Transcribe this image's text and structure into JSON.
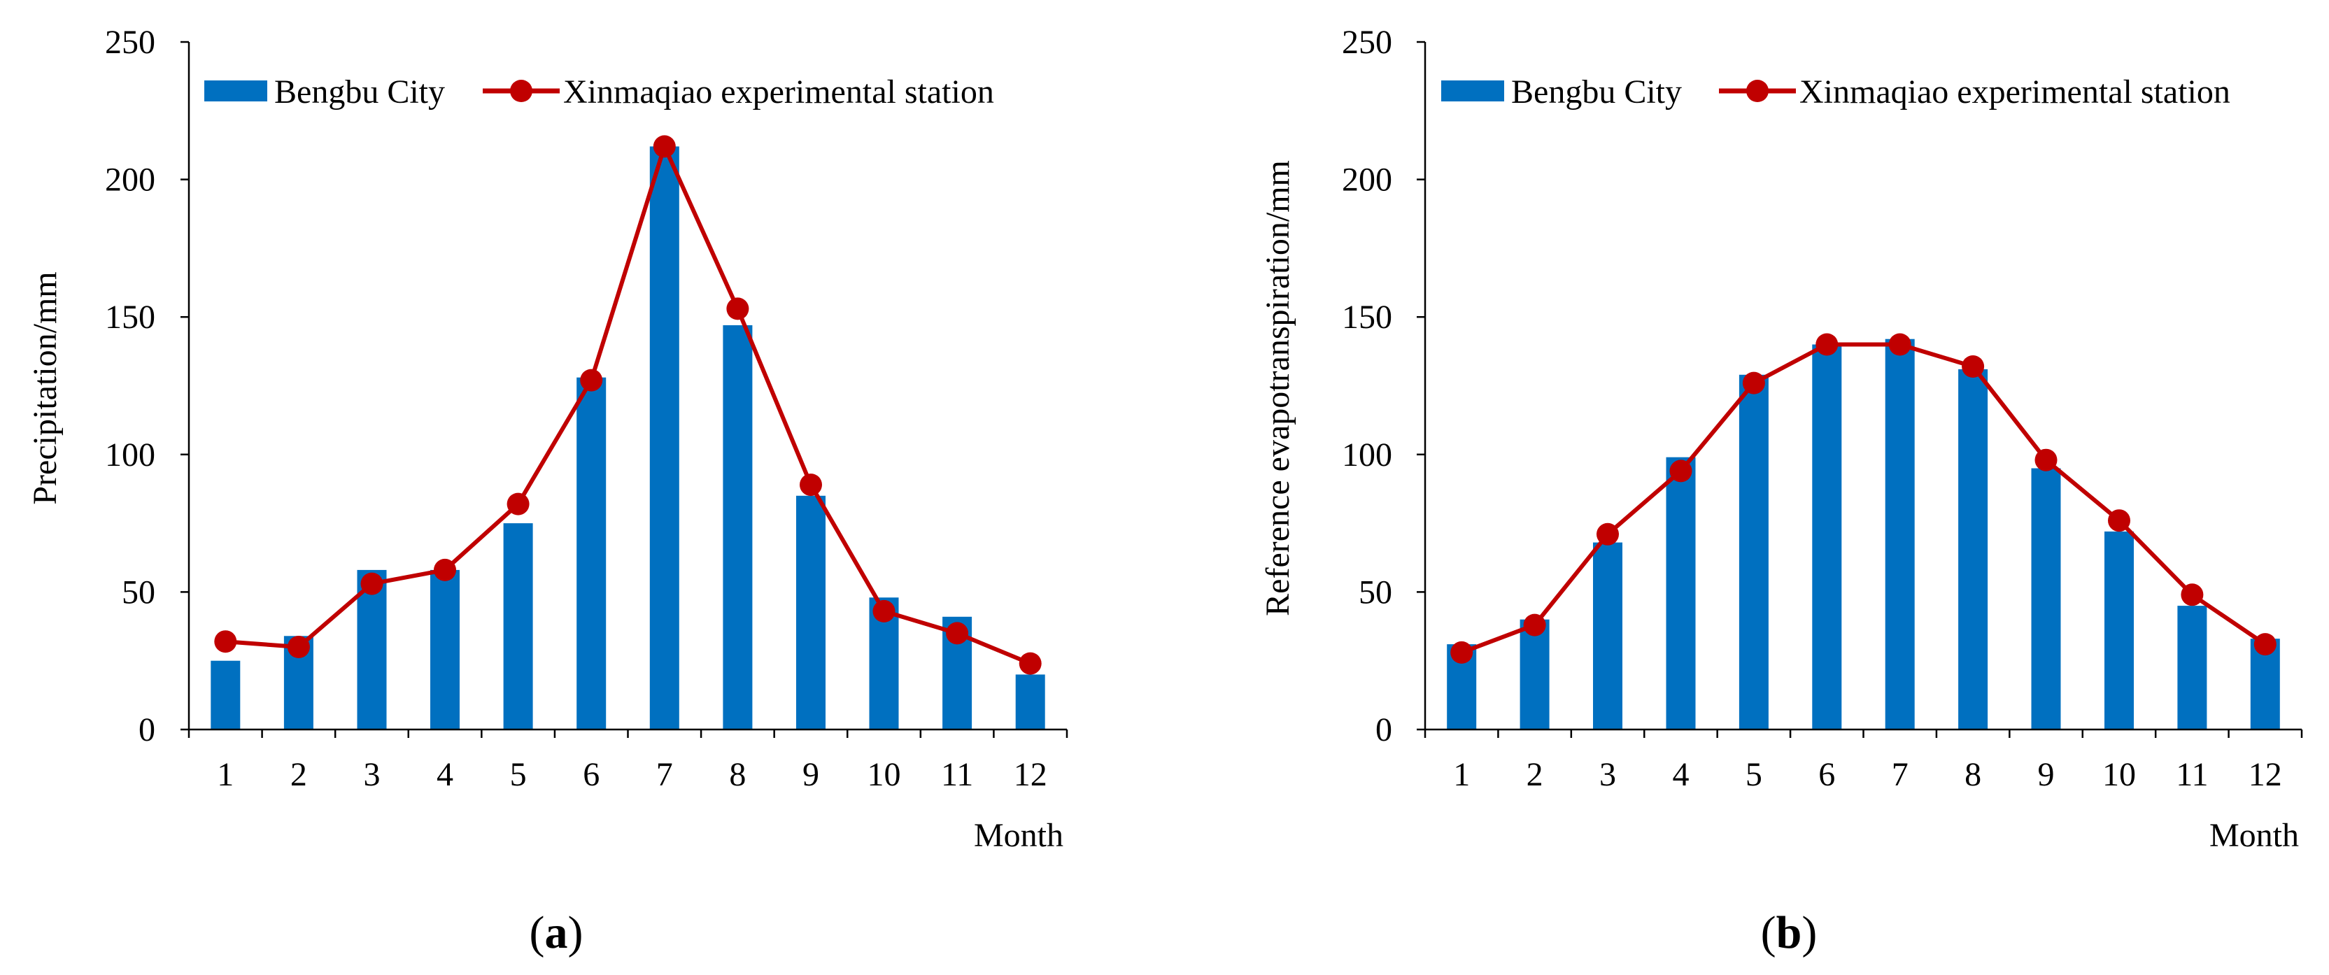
{
  "figure": {
    "panels": [
      "(a)",
      "(b)"
    ]
  },
  "colors": {
    "bar": "#0070C0",
    "line": "#C00000",
    "axis": "#000000"
  },
  "chart_data": [
    {
      "type": "bar",
      "panel_label": "a",
      "categories": [
        "1",
        "2",
        "3",
        "4",
        "5",
        "6",
        "7",
        "8",
        "9",
        "10",
        "11",
        "12"
      ],
      "series": [
        {
          "name": "Bengbu City",
          "type": "bar",
          "values": [
            25,
            34,
            58,
            58,
            75,
            128,
            212,
            147,
            85,
            48,
            41,
            20
          ]
        },
        {
          "name": "Xinmaqiao experimental station",
          "type": "line",
          "values": [
            32,
            30,
            53,
            58,
            82,
            127,
            212,
            153,
            89,
            43,
            35,
            24
          ]
        }
      ],
      "title": "",
      "xlabel": "Month",
      "ylabel": "Precipitation/mm",
      "ylim": [
        0,
        250
      ],
      "yticks": [
        "0",
        "50",
        "100",
        "150",
        "200",
        "250"
      ],
      "legend": "top"
    },
    {
      "type": "bar",
      "panel_label": "b",
      "categories": [
        "1",
        "2",
        "3",
        "4",
        "5",
        "6",
        "7",
        "8",
        "9",
        "10",
        "11",
        "12"
      ],
      "series": [
        {
          "name": "Bengbu City",
          "type": "bar",
          "values": [
            31,
            40,
            68,
            99,
            129,
            140,
            142,
            131,
            95,
            72,
            45,
            33
          ]
        },
        {
          "name": "Xinmaqiao experimental station",
          "type": "line",
          "values": [
            28,
            38,
            71,
            94,
            126,
            140,
            140,
            132,
            98,
            76,
            49,
            31
          ]
        }
      ],
      "title": "",
      "xlabel": "Month",
      "ylabel": "Reference evapotranspiration/mm",
      "ylim": [
        0,
        250
      ],
      "yticks": [
        "0",
        "50",
        "100",
        "150",
        "200",
        "250"
      ],
      "legend": "top"
    }
  ]
}
